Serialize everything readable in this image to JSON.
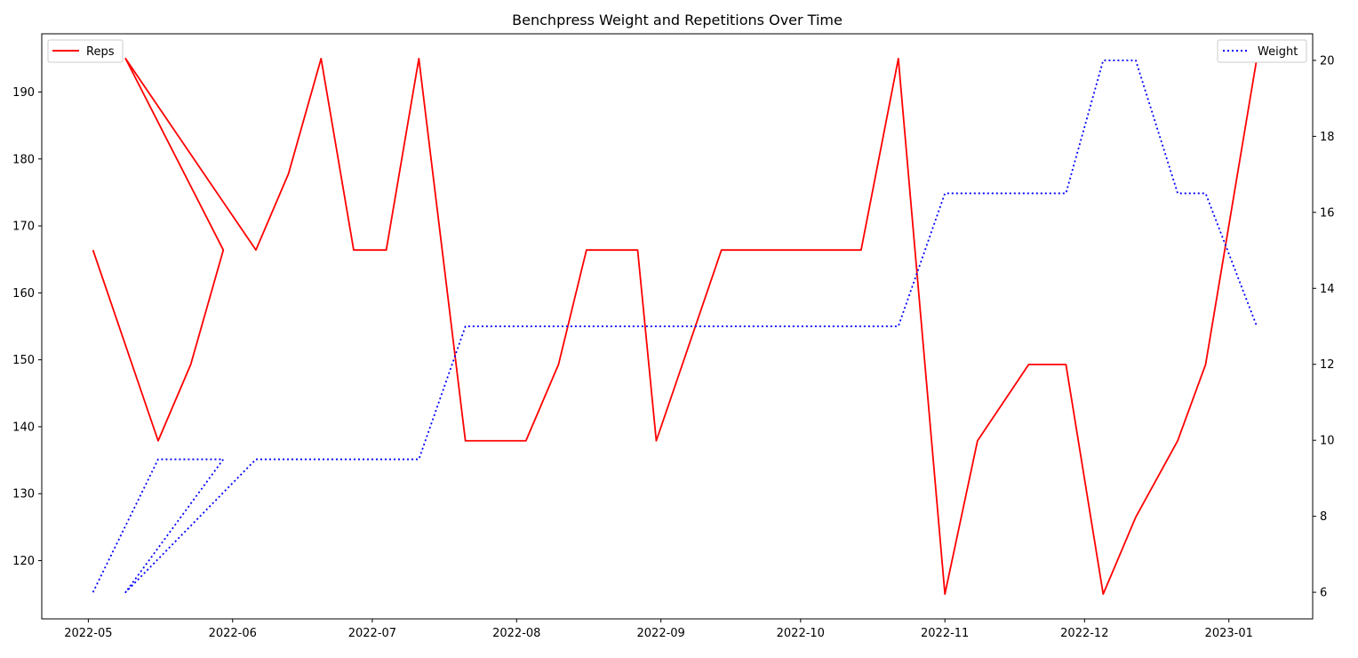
{
  "chart_data": {
    "type": "line",
    "title": "Benchpress Weight and Repetitions Over Time",
    "xlabel": "",
    "ylabel": "",
    "y2label": "",
    "x_ticks": [
      "2022-05",
      "2022-06",
      "2022-07",
      "2022-08",
      "2022-09",
      "2022-10",
      "2022-11",
      "2022-12",
      "2023-01"
    ],
    "xlim": [
      "2022-04-21",
      "2023-01-19"
    ],
    "ylim": [
      111.3,
      198.7
    ],
    "y_ticks": [
      120,
      130,
      140,
      150,
      160,
      170,
      180,
      190
    ],
    "y2lim": [
      5.3,
      20.7
    ],
    "y2_ticks": [
      6,
      8,
      10,
      12,
      14,
      16,
      18,
      20
    ],
    "grid": false,
    "series": [
      {
        "name": "Reps",
        "axis": "left",
        "color": "#ff0000",
        "style": "solid",
        "legend_position": "top-left",
        "x": [
          "2022-05-02",
          "2022-05-16",
          "2022-05-23",
          "2022-05-30",
          "2022-05-09",
          "2022-06-06",
          "2022-06-13",
          "2022-06-20",
          "2022-06-27",
          "2022-07-04",
          "2022-07-11",
          "2022-07-21",
          "2022-08-03",
          "2022-08-10",
          "2022-08-16",
          "2022-08-27",
          "2022-08-31",
          "2022-09-14",
          "2022-10-14",
          "2022-10-22",
          "2022-11-01",
          "2022-11-08",
          "2022-11-19",
          "2022-11-27",
          "2022-12-05",
          "2022-12-12",
          "2022-12-21",
          "2022-12-27",
          "2023-01-07"
        ],
        "values": [
          166.4,
          137.9,
          149.3,
          166.4,
          195,
          166.4,
          177.8,
          195,
          166.4,
          166.4,
          195,
          137.9,
          137.9,
          149.3,
          166.4,
          166.4,
          137.9,
          166.4,
          166.4,
          195,
          115,
          137.9,
          149.3,
          149.3,
          115,
          126.5,
          137.9,
          149.3,
          195
        ]
      },
      {
        "name": "Weight",
        "axis": "right",
        "color": "#0000ff",
        "style": "dotted",
        "legend_position": "top-right",
        "x": [
          "2022-05-02",
          "2022-05-16",
          "2022-05-30",
          "2022-05-09",
          "2022-06-06",
          "2022-07-11",
          "2022-07-21",
          "2022-10-22",
          "2022-11-01",
          "2022-11-27",
          "2022-12-05",
          "2022-12-12",
          "2022-12-21",
          "2022-12-27",
          "2023-01-07"
        ],
        "values": [
          6,
          9.5,
          9.5,
          6,
          9.5,
          9.5,
          13,
          13,
          16.5,
          16.5,
          20,
          20,
          16.5,
          16.5,
          13
        ]
      }
    ]
  }
}
